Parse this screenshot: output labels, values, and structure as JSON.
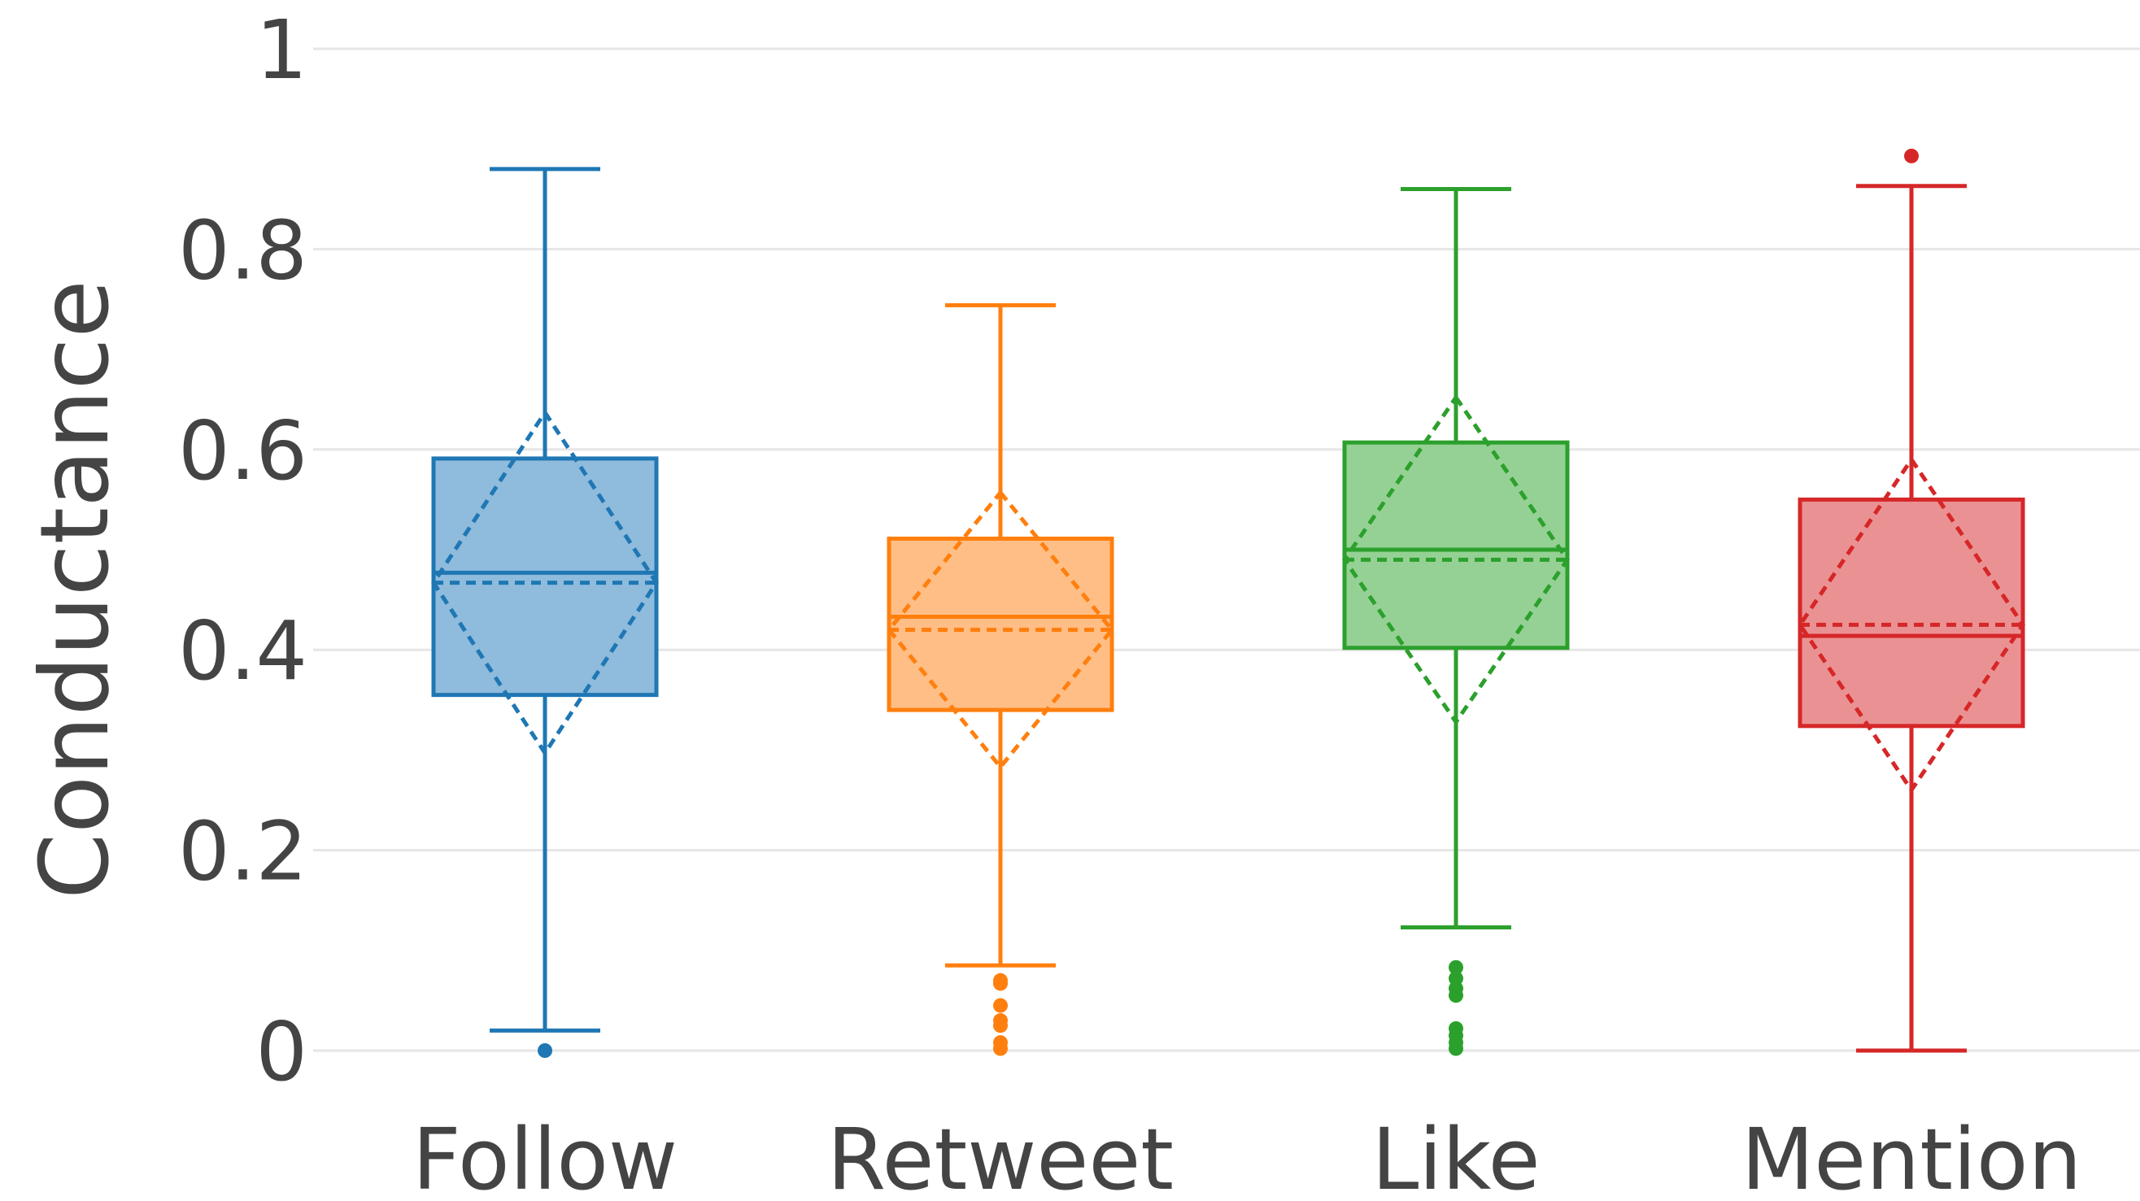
{
  "chart_data": {
    "type": "box",
    "title": "",
    "xlabel": "",
    "ylabel": "Conductance",
    "ylim": [
      0,
      1
    ],
    "yticks": [
      0,
      0.2,
      0.4,
      0.6,
      0.8,
      1
    ],
    "ytick_labels": [
      "0",
      "0.2",
      "0.4",
      "0.6",
      "0.8",
      "1"
    ],
    "grid": true,
    "legend": "none",
    "categories": [
      "Follow",
      "Retweet",
      "Like",
      "Mention"
    ],
    "boxes": [
      {
        "category": "Follow",
        "color": "#1f77b4",
        "fill": "#8fbbdc",
        "whisker_low": 0.02,
        "q1": 0.355,
        "median": 0.477,
        "q3": 0.591,
        "whisker_high": 0.88,
        "mean": 0.467,
        "sd": 0.17,
        "outliers": [
          0.0
        ]
      },
      {
        "category": "Retweet",
        "color": "#ff7f0e",
        "fill": "#ffbe86",
        "whisker_low": 0.085,
        "q1": 0.34,
        "median": 0.433,
        "q3": 0.511,
        "whisker_high": 0.744,
        "mean": 0.42,
        "sd": 0.137,
        "outliers": [
          0.07,
          0.067,
          0.045,
          0.03,
          0.025,
          0.008,
          0.002
        ]
      },
      {
        "category": "Like",
        "color": "#2ca02c",
        "fill": "#95d195",
        "whisker_low": 0.123,
        "q1": 0.402,
        "median": 0.5,
        "q3": 0.607,
        "whisker_high": 0.86,
        "mean": 0.49,
        "sd": 0.162,
        "outliers": [
          0.083,
          0.072,
          0.062,
          0.055,
          0.022,
          0.015,
          0.008,
          0.002
        ]
      },
      {
        "category": "Mention",
        "color": "#d62728",
        "fill": "#ea9293",
        "whisker_low": 0.0,
        "q1": 0.324,
        "median": 0.414,
        "q3": 0.55,
        "whisker_high": 0.863,
        "mean": 0.425,
        "sd": 0.165,
        "outliers": [
          0.893
        ]
      }
    ]
  }
}
